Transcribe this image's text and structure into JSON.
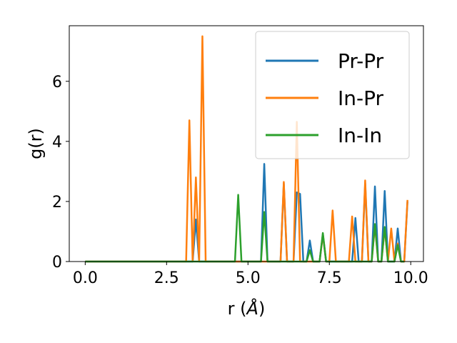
{
  "chart_data": {
    "type": "line",
    "xlabel": "r (",
    "xlabel_unit": "Å",
    "xlabel_close": ")",
    "ylabel": "g(r)",
    "xlim": [
      -0.49,
      10.39
    ],
    "ylim": [
      0,
      7.85
    ],
    "xticks": [
      0.0,
      2.5,
      5.0,
      7.5,
      10.0
    ],
    "xtick_labels": [
      "0.0",
      "2.5",
      "5.0",
      "7.5",
      "10.0"
    ],
    "yticks": [
      0,
      2,
      4,
      6
    ],
    "ytick_labels": [
      "0",
      "2",
      "4",
      "6"
    ],
    "grid": false,
    "legend_position": "top-right",
    "series": [
      {
        "name": "Pr-Pr",
        "color": "#1f77b4",
        "x": [
          0,
          3.2,
          3.3,
          3.4,
          3.5,
          3.6,
          3.7,
          3.8,
          5.3,
          5.4,
          5.5,
          5.6,
          5.7,
          5.9,
          6.0,
          6.1,
          6.2,
          6.3,
          6.4,
          6.5,
          6.6,
          6.7,
          6.8,
          6.9,
          7.0,
          7.2,
          7.3,
          7.4,
          8.1,
          8.2,
          8.3,
          8.4,
          8.5,
          8.6,
          8.7,
          8.8,
          8.9,
          9.0,
          9.1,
          9.2,
          9.3,
          9.4,
          9.5,
          9.6,
          9.7,
          9.8,
          9.9
        ],
        "values": [
          0,
          0,
          0,
          1.4,
          0,
          0,
          0,
          0,
          0,
          0,
          3.25,
          0,
          0,
          0,
          0,
          2.6,
          0,
          0,
          0,
          2.3,
          2.25,
          0,
          0,
          0.7,
          0,
          0,
          0.9,
          0,
          0,
          0,
          1.45,
          0,
          0,
          2.6,
          0,
          0,
          2.5,
          0,
          0,
          2.35,
          0,
          0,
          0,
          1.1,
          0,
          0,
          2.0
        ]
      },
      {
        "name": "In-Pr",
        "color": "#ff7f0e",
        "x": [
          0,
          3.1,
          3.2,
          3.3,
          3.4,
          3.5,
          3.6,
          3.7,
          5.9,
          6.0,
          6.1,
          6.2,
          6.3,
          6.4,
          6.5,
          6.6,
          6.7,
          6.8,
          7.0,
          7.1,
          7.2,
          7.3,
          7.4,
          7.5,
          7.6,
          7.7,
          8.1,
          8.2,
          8.3,
          8.5,
          8.6,
          8.7,
          8.8,
          8.9,
          9.0,
          9.1,
          9.2,
          9.3,
          9.4,
          9.5,
          9.6,
          9.7,
          9.8,
          9.9
        ],
        "values": [
          0,
          0,
          4.7,
          0,
          2.8,
          0,
          7.5,
          0,
          0,
          0,
          2.65,
          0,
          0,
          0,
          4.65,
          0,
          0,
          0,
          0,
          0,
          0,
          0.9,
          0,
          0,
          1.7,
          0,
          0,
          1.5,
          0,
          0,
          2.7,
          0,
          0,
          1.2,
          0,
          0,
          1.1,
          0,
          1.1,
          0,
          0.6,
          0,
          0,
          2.05
        ]
      },
      {
        "name": "In-In",
        "color": "#2ca02c",
        "x": [
          0,
          4.6,
          4.7,
          4.8,
          5.4,
          5.5,
          5.6,
          6.8,
          6.9,
          7.0,
          7.2,
          7.3,
          7.4,
          8.8,
          8.9,
          9.0,
          9.1,
          9.2,
          9.3,
          9.5,
          9.6,
          9.7,
          9.8
        ],
        "values": [
          0,
          0,
          2.22,
          0,
          0,
          1.65,
          0,
          0,
          0.38,
          0,
          0,
          0.95,
          0,
          0,
          1.25,
          0,
          0,
          1.15,
          0,
          0,
          0.55,
          0,
          0
        ]
      }
    ]
  }
}
